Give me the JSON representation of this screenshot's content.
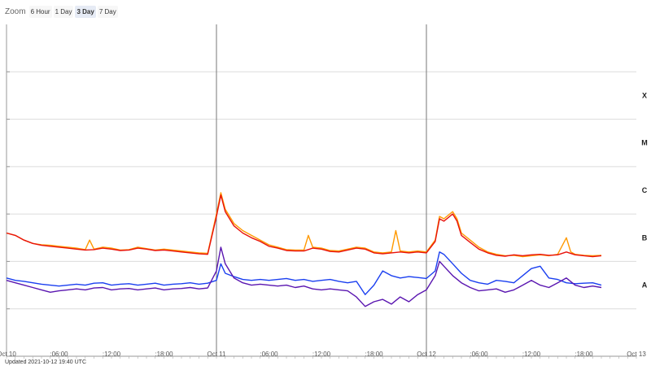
{
  "zoom": {
    "label": "Zoom",
    "options": [
      "6 Hour",
      "1 Day",
      "3 Day",
      "7 Day"
    ],
    "selected": "3 Day"
  },
  "updated_text": "Updated 2021-10-12 19:40 UTC",
  "colors": {
    "series_1": "#ff9900",
    "series_2": "#e8120c",
    "series_3": "#1a3ff0",
    "series_4": "#5a16b0",
    "grid": "#dcdcdc",
    "day_marker": "#777777"
  },
  "chart_data": {
    "type": "line",
    "x_range_hours": [
      0,
      72
    ],
    "x_ticks": [
      {
        "hour": 0,
        "label": "Oct 10"
      },
      {
        "hour": 6,
        "label": ":06:00"
      },
      {
        "hour": 12,
        "label": ":12:00"
      },
      {
        "hour": 18,
        "label": ":18:00"
      },
      {
        "hour": 24,
        "label": "Oct 11"
      },
      {
        "hour": 30,
        "label": ":06:00"
      },
      {
        "hour": 36,
        "label": ":12:00"
      },
      {
        "hour": 42,
        "label": ":18:00"
      },
      {
        "hour": 48,
        "label": "Oct 12"
      },
      {
        "hour": 54,
        "label": ":06:00"
      },
      {
        "hour": 60,
        "label": ":12:00"
      },
      {
        "hour": 66,
        "label": ":18:00"
      },
      {
        "hour": 72,
        "label": "Oct 13"
      }
    ],
    "day_markers_hours": [
      24,
      48
    ],
    "y_scale": "log",
    "y_range_log10": [
      -9,
      -2
    ],
    "y_gridlines_log10": [
      -9,
      -8,
      -7,
      -6,
      -5,
      -4,
      -3
    ],
    "y_class_labels": [
      {
        "label": "A",
        "log10": -7.5
      },
      {
        "label": "B",
        "log10": -6.5
      },
      {
        "label": "C",
        "log10": -5.5
      },
      {
        "label": "M",
        "log10": -4.5
      },
      {
        "label": "X",
        "log10": -3.5
      }
    ],
    "x_axis_marks_every_hours": 1,
    "series": [
      {
        "color_key": "series_1",
        "points": [
          [
            0,
            -6.4
          ],
          [
            1,
            -6.45
          ],
          [
            2,
            -6.55
          ],
          [
            3,
            -6.62
          ],
          [
            4,
            -6.65
          ],
          [
            5,
            -6.66
          ],
          [
            6,
            -6.68
          ],
          [
            7,
            -6.7
          ],
          [
            8,
            -6.72
          ],
          [
            9,
            -6.75
          ],
          [
            9.5,
            -6.55
          ],
          [
            10,
            -6.74
          ],
          [
            11,
            -6.7
          ],
          [
            12,
            -6.72
          ],
          [
            13,
            -6.76
          ],
          [
            14,
            -6.75
          ],
          [
            15,
            -6.7
          ],
          [
            16,
            -6.73
          ],
          [
            17,
            -6.76
          ],
          [
            18,
            -6.74
          ],
          [
            19,
            -6.76
          ],
          [
            20,
            -6.78
          ],
          [
            21,
            -6.8
          ],
          [
            22,
            -6.82
          ],
          [
            23,
            -6.83
          ],
          [
            24,
            -6.0
          ],
          [
            24.5,
            -5.55
          ],
          [
            25,
            -5.9
          ],
          [
            26,
            -6.2
          ],
          [
            27,
            -6.35
          ],
          [
            28,
            -6.45
          ],
          [
            29,
            -6.55
          ],
          [
            30,
            -6.65
          ],
          [
            31,
            -6.7
          ],
          [
            32,
            -6.75
          ],
          [
            33,
            -6.76
          ],
          [
            34,
            -6.76
          ],
          [
            34.5,
            -6.45
          ],
          [
            35,
            -6.7
          ],
          [
            36,
            -6.72
          ],
          [
            37,
            -6.77
          ],
          [
            38,
            -6.78
          ],
          [
            39,
            -6.74
          ],
          [
            40,
            -6.7
          ],
          [
            41,
            -6.72
          ],
          [
            42,
            -6.8
          ],
          [
            43,
            -6.82
          ],
          [
            44,
            -6.8
          ],
          [
            44.5,
            -6.35
          ],
          [
            45,
            -6.78
          ],
          [
            46,
            -6.8
          ],
          [
            47,
            -6.78
          ],
          [
            48,
            -6.8
          ],
          [
            49,
            -6.55
          ],
          [
            49.5,
            -6.05
          ],
          [
            50,
            -6.1
          ],
          [
            51,
            -5.95
          ],
          [
            51.5,
            -6.1
          ],
          [
            52,
            -6.4
          ],
          [
            53,
            -6.55
          ],
          [
            54,
            -6.7
          ],
          [
            55,
            -6.8
          ],
          [
            56,
            -6.85
          ],
          [
            57,
            -6.88
          ],
          [
            58,
            -6.87
          ],
          [
            59,
            -6.9
          ],
          [
            60,
            -6.88
          ],
          [
            61,
            -6.86
          ],
          [
            62,
            -6.88
          ],
          [
            63,
            -6.85
          ],
          [
            64,
            -6.5
          ],
          [
            64.5,
            -6.8
          ],
          [
            65,
            -6.85
          ],
          [
            66,
            -6.87
          ],
          [
            67,
            -6.88
          ],
          [
            68,
            -6.87
          ]
        ]
      },
      {
        "color_key": "series_2",
        "points": [
          [
            0,
            -6.4
          ],
          [
            1,
            -6.45
          ],
          [
            2,
            -6.55
          ],
          [
            3,
            -6.62
          ],
          [
            4,
            -6.66
          ],
          [
            5,
            -6.68
          ],
          [
            6,
            -6.7
          ],
          [
            7,
            -6.72
          ],
          [
            8,
            -6.74
          ],
          [
            9,
            -6.76
          ],
          [
            10,
            -6.75
          ],
          [
            11,
            -6.72
          ],
          [
            12,
            -6.74
          ],
          [
            13,
            -6.77
          ],
          [
            14,
            -6.76
          ],
          [
            15,
            -6.72
          ],
          [
            16,
            -6.74
          ],
          [
            17,
            -6.77
          ],
          [
            18,
            -6.76
          ],
          [
            19,
            -6.78
          ],
          [
            20,
            -6.8
          ],
          [
            21,
            -6.82
          ],
          [
            22,
            -6.84
          ],
          [
            23,
            -6.85
          ],
          [
            24,
            -6.05
          ],
          [
            24.5,
            -5.6
          ],
          [
            25,
            -5.95
          ],
          [
            26,
            -6.25
          ],
          [
            27,
            -6.4
          ],
          [
            28,
            -6.5
          ],
          [
            29,
            -6.58
          ],
          [
            30,
            -6.68
          ],
          [
            31,
            -6.72
          ],
          [
            32,
            -6.77
          ],
          [
            33,
            -6.78
          ],
          [
            34,
            -6.78
          ],
          [
            35,
            -6.72
          ],
          [
            36,
            -6.74
          ],
          [
            37,
            -6.79
          ],
          [
            38,
            -6.8
          ],
          [
            39,
            -6.76
          ],
          [
            40,
            -6.72
          ],
          [
            41,
            -6.74
          ],
          [
            42,
            -6.82
          ],
          [
            43,
            -6.84
          ],
          [
            44,
            -6.82
          ],
          [
            45,
            -6.8
          ],
          [
            46,
            -6.82
          ],
          [
            47,
            -6.8
          ],
          [
            48,
            -6.82
          ],
          [
            49,
            -6.58
          ],
          [
            49.5,
            -6.1
          ],
          [
            50,
            -6.15
          ],
          [
            51,
            -6.0
          ],
          [
            51.5,
            -6.15
          ],
          [
            52,
            -6.45
          ],
          [
            53,
            -6.6
          ],
          [
            54,
            -6.74
          ],
          [
            55,
            -6.82
          ],
          [
            56,
            -6.87
          ],
          [
            57,
            -6.89
          ],
          [
            58,
            -6.86
          ],
          [
            59,
            -6.88
          ],
          [
            60,
            -6.86
          ],
          [
            61,
            -6.85
          ],
          [
            62,
            -6.87
          ],
          [
            63,
            -6.86
          ],
          [
            64,
            -6.8
          ],
          [
            65,
            -6.86
          ],
          [
            66,
            -6.88
          ],
          [
            67,
            -6.9
          ],
          [
            68,
            -6.88
          ]
        ]
      },
      {
        "color_key": "series_3",
        "points": [
          [
            0,
            -7.35
          ],
          [
            1,
            -7.4
          ],
          [
            2,
            -7.42
          ],
          [
            3,
            -7.45
          ],
          [
            4,
            -7.48
          ],
          [
            5,
            -7.5
          ],
          [
            6,
            -7.52
          ],
          [
            7,
            -7.5
          ],
          [
            8,
            -7.48
          ],
          [
            9,
            -7.5
          ],
          [
            10,
            -7.46
          ],
          [
            11,
            -7.45
          ],
          [
            12,
            -7.5
          ],
          [
            13,
            -7.48
          ],
          [
            14,
            -7.47
          ],
          [
            15,
            -7.5
          ],
          [
            16,
            -7.48
          ],
          [
            17,
            -7.46
          ],
          [
            18,
            -7.5
          ],
          [
            19,
            -7.48
          ],
          [
            20,
            -7.47
          ],
          [
            21,
            -7.45
          ],
          [
            22,
            -7.48
          ],
          [
            23,
            -7.46
          ],
          [
            24,
            -7.4
          ],
          [
            24.5,
            -7.05
          ],
          [
            25,
            -7.25
          ],
          [
            26,
            -7.32
          ],
          [
            27,
            -7.38
          ],
          [
            28,
            -7.4
          ],
          [
            29,
            -7.38
          ],
          [
            30,
            -7.4
          ],
          [
            31,
            -7.38
          ],
          [
            32,
            -7.36
          ],
          [
            33,
            -7.4
          ],
          [
            34,
            -7.38
          ],
          [
            35,
            -7.42
          ],
          [
            36,
            -7.4
          ],
          [
            37,
            -7.38
          ],
          [
            38,
            -7.42
          ],
          [
            39,
            -7.45
          ],
          [
            40,
            -7.42
          ],
          [
            41,
            -7.7
          ],
          [
            42,
            -7.5
          ],
          [
            43,
            -7.2
          ],
          [
            44,
            -7.3
          ],
          [
            45,
            -7.35
          ],
          [
            46,
            -7.32
          ],
          [
            47,
            -7.34
          ],
          [
            48,
            -7.36
          ],
          [
            49,
            -7.2
          ],
          [
            49.5,
            -6.8
          ],
          [
            50,
            -6.85
          ],
          [
            51,
            -7.05
          ],
          [
            52,
            -7.25
          ],
          [
            53,
            -7.4
          ],
          [
            54,
            -7.45
          ],
          [
            55,
            -7.48
          ],
          [
            56,
            -7.4
          ],
          [
            57,
            -7.42
          ],
          [
            58,
            -7.45
          ],
          [
            59,
            -7.3
          ],
          [
            60,
            -7.15
          ],
          [
            61,
            -7.1
          ],
          [
            62,
            -7.35
          ],
          [
            63,
            -7.38
          ],
          [
            64,
            -7.45
          ],
          [
            65,
            -7.47
          ],
          [
            66,
            -7.46
          ],
          [
            67,
            -7.45
          ],
          [
            68,
            -7.5
          ]
        ]
      },
      {
        "color_key": "series_4",
        "points": [
          [
            0,
            -7.4
          ],
          [
            1,
            -7.45
          ],
          [
            2,
            -7.5
          ],
          [
            3,
            -7.55
          ],
          [
            4,
            -7.6
          ],
          [
            5,
            -7.65
          ],
          [
            6,
            -7.62
          ],
          [
            7,
            -7.6
          ],
          [
            8,
            -7.58
          ],
          [
            9,
            -7.6
          ],
          [
            10,
            -7.56
          ],
          [
            11,
            -7.55
          ],
          [
            12,
            -7.6
          ],
          [
            13,
            -7.58
          ],
          [
            14,
            -7.57
          ],
          [
            15,
            -7.6
          ],
          [
            16,
            -7.58
          ],
          [
            17,
            -7.56
          ],
          [
            18,
            -7.6
          ],
          [
            19,
            -7.58
          ],
          [
            20,
            -7.57
          ],
          [
            21,
            -7.55
          ],
          [
            22,
            -7.58
          ],
          [
            23,
            -7.56
          ],
          [
            24,
            -7.2
          ],
          [
            24.5,
            -6.7
          ],
          [
            25,
            -7.05
          ],
          [
            26,
            -7.35
          ],
          [
            27,
            -7.45
          ],
          [
            28,
            -7.5
          ],
          [
            29,
            -7.48
          ],
          [
            30,
            -7.5
          ],
          [
            31,
            -7.52
          ],
          [
            32,
            -7.5
          ],
          [
            33,
            -7.55
          ],
          [
            34,
            -7.52
          ],
          [
            35,
            -7.58
          ],
          [
            36,
            -7.6
          ],
          [
            37,
            -7.58
          ],
          [
            38,
            -7.6
          ],
          [
            39,
            -7.62
          ],
          [
            40,
            -7.75
          ],
          [
            41,
            -7.95
          ],
          [
            42,
            -7.85
          ],
          [
            43,
            -7.8
          ],
          [
            44,
            -7.9
          ],
          [
            45,
            -7.75
          ],
          [
            46,
            -7.85
          ],
          [
            47,
            -7.7
          ],
          [
            48,
            -7.6
          ],
          [
            49,
            -7.3
          ],
          [
            49.5,
            -7.0
          ],
          [
            50,
            -7.1
          ],
          [
            51,
            -7.3
          ],
          [
            52,
            -7.45
          ],
          [
            53,
            -7.55
          ],
          [
            54,
            -7.62
          ],
          [
            55,
            -7.6
          ],
          [
            56,
            -7.58
          ],
          [
            57,
            -7.65
          ],
          [
            58,
            -7.6
          ],
          [
            59,
            -7.5
          ],
          [
            60,
            -7.4
          ],
          [
            61,
            -7.5
          ],
          [
            62,
            -7.55
          ],
          [
            63,
            -7.45
          ],
          [
            64,
            -7.35
          ],
          [
            65,
            -7.5
          ],
          [
            66,
            -7.55
          ],
          [
            67,
            -7.52
          ],
          [
            68,
            -7.55
          ]
        ]
      }
    ]
  }
}
